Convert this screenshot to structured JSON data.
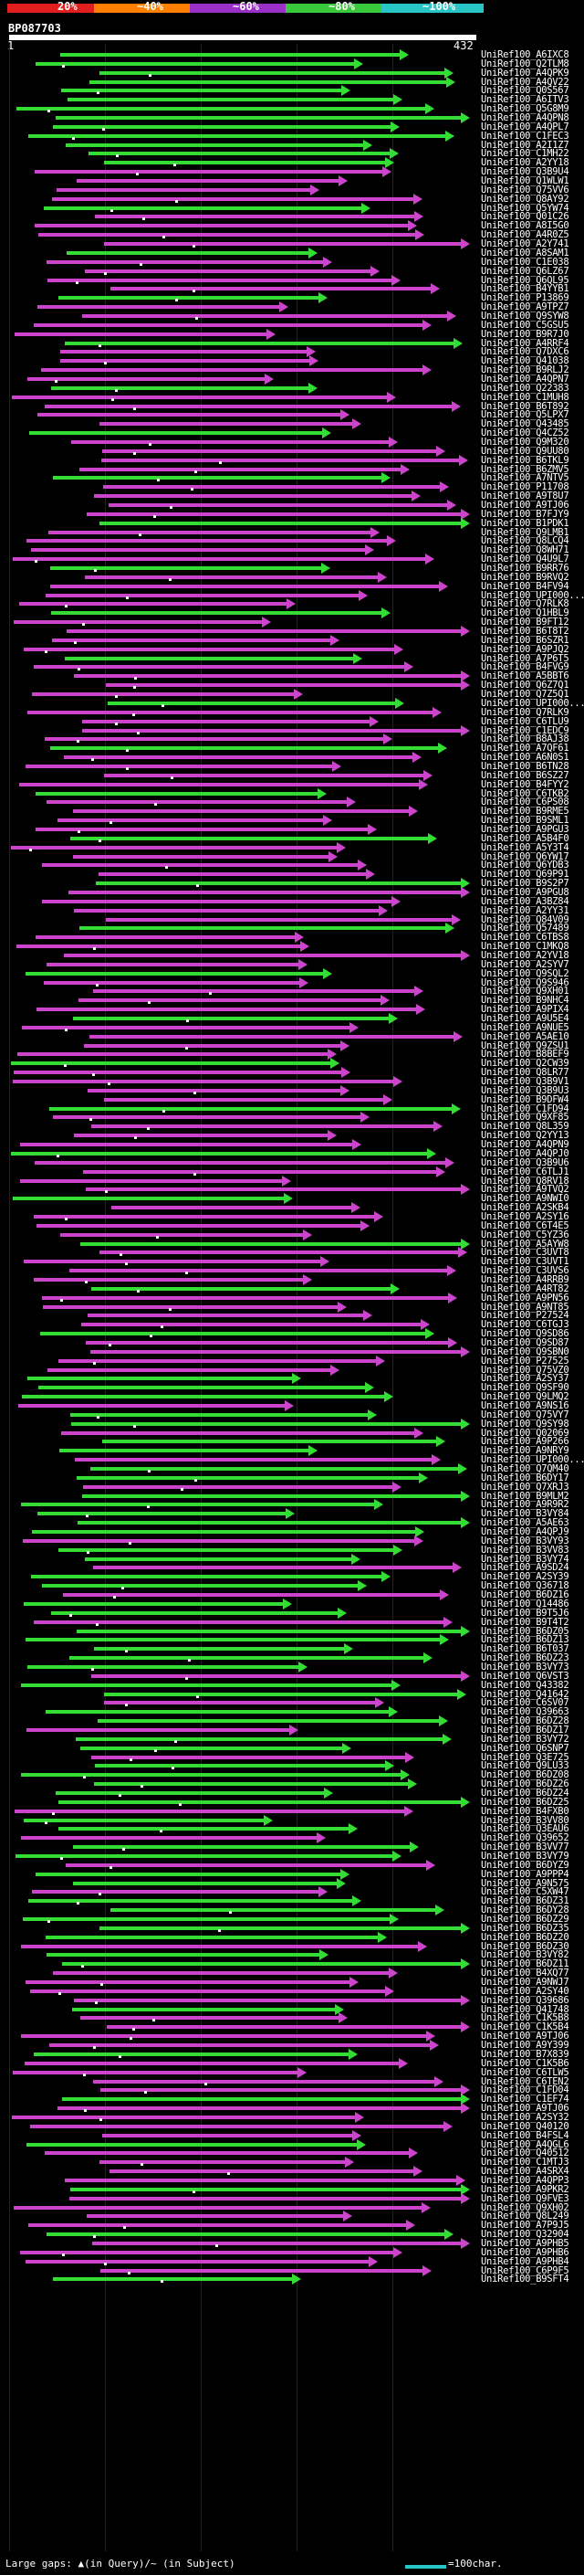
{
  "header": {
    "scale_labels": [
      "20%",
      "~40%",
      "~60%",
      "~80%",
      "~100%"
    ],
    "scale_colors": [
      "#e01e1e",
      "#ff7f00",
      "#9b30c8",
      "#3ac93a",
      "#27c5c5"
    ],
    "title": "BP087703",
    "range_start": "1",
    "range_end": "432"
  },
  "legend": {
    "left": "Large gaps: ▲(in Query)/~ (in Subject)",
    "right": "=100char."
  },
  "colors": {
    "green": "#33dd33",
    "magenta": "#cc44cc",
    "reference": "#ffffff",
    "cyan": "#27c5c5"
  },
  "hits": [
    "UniRef100_A6IXC8",
    "UniRef100_Q2TLM8",
    "UniRef100_A4QPK9",
    "UniRef100_A4QV22",
    "UniRef100_Q0S567",
    "UniRef100_A6ITV3",
    "UniRef100_Q5G8M9",
    "UniRef100_A4QPN8",
    "UniRef100_A4QPL7",
    "UniRef100_C1FEC3",
    "UniRef100_A2I1Z7",
    "UniRef100_C1MH22",
    "UniRef100_A2YY18",
    "UniRef100_Q3B9U4",
    "UniRef100_Q1WLW1",
    "UniRef100_Q75VV6",
    "UniRef100_Q8AY92",
    "UniRef100_Q5YW74",
    "UniRef100_Q01C26",
    "UniRef100_A8I5G0",
    "UniRef100_A4R0Z5",
    "UniRef100_A2Y741",
    "UniRef100_A8SAM1",
    "UniRef100_C1E038",
    "UniRef100_Q6LZ67",
    "UniRef100_Q6QL95",
    "UniRef100_B4YYB1",
    "UniRef100_P13869",
    "UniRef100_A9TPZ7",
    "UniRef100_Q9SYW8",
    "UniRef100_C5GSU5",
    "UniRef100_B9R7J0",
    "UniRef100_A4RRF4",
    "UniRef100_Q7DXC6",
    "UniRef100_Q41038",
    "UniRef100_B9RLJ2",
    "UniRef100_A4QPN7",
    "UniRef100_Q22383",
    "UniRef100_C1MUH8",
    "UniRef100_B6T892",
    "UniRef100_Q5LPX7",
    "UniRef100_Q43485",
    "UniRef100_Q4CZ52",
    "UniRef100_Q9M320",
    "UniRef100_Q9UU80",
    "UniRef100_B6TKL9",
    "UniRef100_B6ZMV5",
    "UniRef100_A7NTV5",
    "UniRef100_P11708",
    "UniRef100_A9T8U7",
    "UniRef100_A9TJ06",
    "UniRef100_B7FJY9",
    "UniRef100_B1PDK1",
    "UniRef100_Q9LMB1",
    "UniRef100_Q8LCQ4",
    "UniRef100_Q8WH71",
    "UniRef100_Q4U9L7",
    "UniRef100_B9RR76",
    "UniRef100_B9RVQ2",
    "UniRef100_B4FV94",
    "UniRef100_UPI000...",
    "UniRef100_Q7RLK8",
    "UniRef100_Q1HBL9",
    "UniRef100_B9FT12",
    "UniRef100_B6T8T2",
    "UniRef100_B6SZR1",
    "UniRef100_A9PJQ2",
    "UniRef100_A7P6T5",
    "UniRef100_B4FVG9",
    "UniRef100_A5BBT6",
    "UniRef100_Q6Z7Q1",
    "UniRef100_Q7Z5Q1",
    "UniRef100_UPI000...",
    "UniRef100_Q7RLK9",
    "UniRef100_C6TLU9",
    "UniRef100_C1EDC9",
    "UniRef100_B8AJ38",
    "UniRef100_A7QF61",
    "UniRef100_A6N0S1",
    "UniRef100_B6TN28",
    "UniRef100_B6SZ27",
    "UniRef100_B4FYY2",
    "UniRef100_C6TKB2",
    "UniRef100_C6PS08",
    "UniRef100_B9RME5",
    "UniRef100_B9SML1",
    "UniRef100_A9PGU3",
    "UniRef100_A5B4F0",
    "UniRef100_A5Y3T4",
    "UniRef100_Q6YW17",
    "UniRef100_Q6YDB3",
    "UniRef100_Q69P91",
    "UniRef100_B9S2P7",
    "UniRef100_A9PGU8",
    "UniRef100_A3BZ84",
    "UniRef100_A2YY31",
    "UniRef100_Q84V09",
    "UniRef100_Q57489",
    "UniRef100_C6TBS8",
    "UniRef100_C1MKQ8",
    "UniRef100_A2YV18",
    "UniRef100_A2SYV7",
    "UniRef100_Q9SQL2",
    "UniRef100_Q9S946",
    "UniRef100_Q9XH01",
    "UniRef100_B9NHC4",
    "UniRef100_A9PIX4",
    "UniRef100_A9U5E4",
    "UniRef100_A9NUE5",
    "UniRef100_A5AE10",
    "UniRef100_Q9ZSU1",
    "UniRef100_B8BEF9",
    "UniRef100_Q2CW39",
    "UniRef100_Q8LR77",
    "UniRef100_Q3B9V1",
    "UniRef100_Q3B9U3",
    "UniRef100_B9DFW4",
    "UniRef100_C1FD94",
    "UniRef100_Q9XF85",
    "UniRef100_Q8L359",
    "UniRef100_Q2YY13",
    "UniRef100_A4QPN9",
    "UniRef100_A4QPJ0",
    "UniRef100_Q3B9U6",
    "UniRef100_C6TLJ1",
    "UniRef100_Q8RV18",
    "UniRef100_A9TVQ2",
    "UniRef100_A9NWI0",
    "UniRef100_A2SKB4",
    "UniRef100_A2SY16",
    "UniRef100_C6T4E5",
    "UniRef100_C5YZ36",
    "UniRef100_A5AYW8",
    "UniRef100_C3UVT8",
    "UniRef100_C3UVT1",
    "UniRef100_C3UVS6",
    "UniRef100_A4RRB9",
    "UniRef100_A4RT82",
    "UniRef100_A9PN56",
    "UniRef100_A9NT85",
    "UniRef100_P27524",
    "UniRef100_C6TGJ3",
    "UniRef100_Q9SD86",
    "UniRef100_Q9SD87",
    "UniRef100_Q9SBN0",
    "UniRef100_P27525",
    "UniRef100_Q75VZ0",
    "UniRef100_A2SY37",
    "UniRef100_Q9SF90",
    "UniRef100_Q9LMQ2",
    "UniRef100_A9NS16",
    "UniRef100_Q75VY7",
    "UniRef100_Q9SY98",
    "UniRef100_Q02069",
    "UniRef100_A9P266",
    "UniRef100_A9NRY9",
    "UniRef100_UPI000...",
    "UniRef100_Q7QM40",
    "UniRef100_B6DY17",
    "UniRef100_Q7XRJ3",
    "UniRef100_B9MLM2",
    "UniRef100_A9R9R2",
    "UniRef100_B3VY84",
    "UniRef100_A5AE63",
    "UniRef100_A4QPJ9",
    "UniRef100_B3VY93",
    "UniRef100_B3VV83",
    "UniRef100_B3VY74",
    "UniRef100_A9SD24",
    "UniRef100_A2SY39",
    "UniRef100_Q36718",
    "UniRef100_B6DZ16",
    "UniRef100_Q14486",
    "UniRef100_B9T5J6",
    "UniRef100_B9T4T2",
    "UniRef100_B6DZ05",
    "UniRef100_B6DZ13",
    "UniRef100_B6T037",
    "UniRef100_B6DZ23",
    "UniRef100_B3VY73",
    "UniRef100_Q6VST3",
    "UniRef100_Q43382",
    "UniRef100_Q41642",
    "UniRef100_C6SV07",
    "UniRef100_Q39663",
    "UniRef100_B6DZ28",
    "UniRef100_B6DZ17",
    "UniRef100_B3VY72",
    "UniRef100_Q6SNP7",
    "UniRef100_Q3E725",
    "UniRef100_Q9LU33",
    "UniRef100_B6DZ08",
    "UniRef100_B6DZ26",
    "UniRef100_B6DZ24",
    "UniRef100_B6DZ25",
    "UniRef100_B4FXB0",
    "UniRef100_B3VV80",
    "UniRef100_Q3EAU6",
    "UniRef100_Q39652",
    "UniRef100_B3VV77",
    "UniRef100_B3VY79",
    "UniRef100_B6DYZ9",
    "UniRef100_A9PPP4",
    "UniRef100_A9N575",
    "UniRef100_C5XW47",
    "UniRef100_B6DZ31",
    "UniRef100_B6DY28",
    "UniRef100_B6DZ29",
    "UniRef100_B6DZ35",
    "UniRef100_B6DZ20",
    "UniRef100_B6DZ30",
    "UniRef100_B3VY82",
    "UniRef100_B6DZ11",
    "UniRef100_B4XQ77",
    "UniRef100_A9NWJ7",
    "UniRef100_A2SY40",
    "UniRef100_Q39686",
    "UniRef100_Q41748",
    "UniRef100_C1K5B8",
    "UniRef100_C1K5B4",
    "UniRef100_A9TJ06",
    "UniRef100_A9Y399",
    "UniRef100_B7X839",
    "UniRef100_C1K5B6",
    "UniRef100_C6TLW5",
    "UniRef100_C6TEN2",
    "UniRef100_C1FD04",
    "UniRef100_C1EF74",
    "UniRef100_A9TJ06",
    "UniRef100_A2SY32",
    "UniRef100_Q40120",
    "UniRef100_B4FSL4",
    "UniRef100_A4QGL6",
    "UniRef100_Q40512",
    "UniRef100_C1MTJ3",
    "UniRef100_A4SRX4",
    "UniRef100_A4QPP3",
    "UniRef100_A9PKR2",
    "UniRef100_Q9FVE3",
    "UniRef100_Q9XH02",
    "UniRef100_Q8L249",
    "UniRef100_A7P9J5",
    "UniRef100_Q32904",
    "UniRef100_A9PHB5",
    "UniRef100_A9PHB6",
    "UniRef100_A9PHB4",
    "UniRef100_C6P9F5",
    "UniRef100_B9SFT4"
  ]
}
